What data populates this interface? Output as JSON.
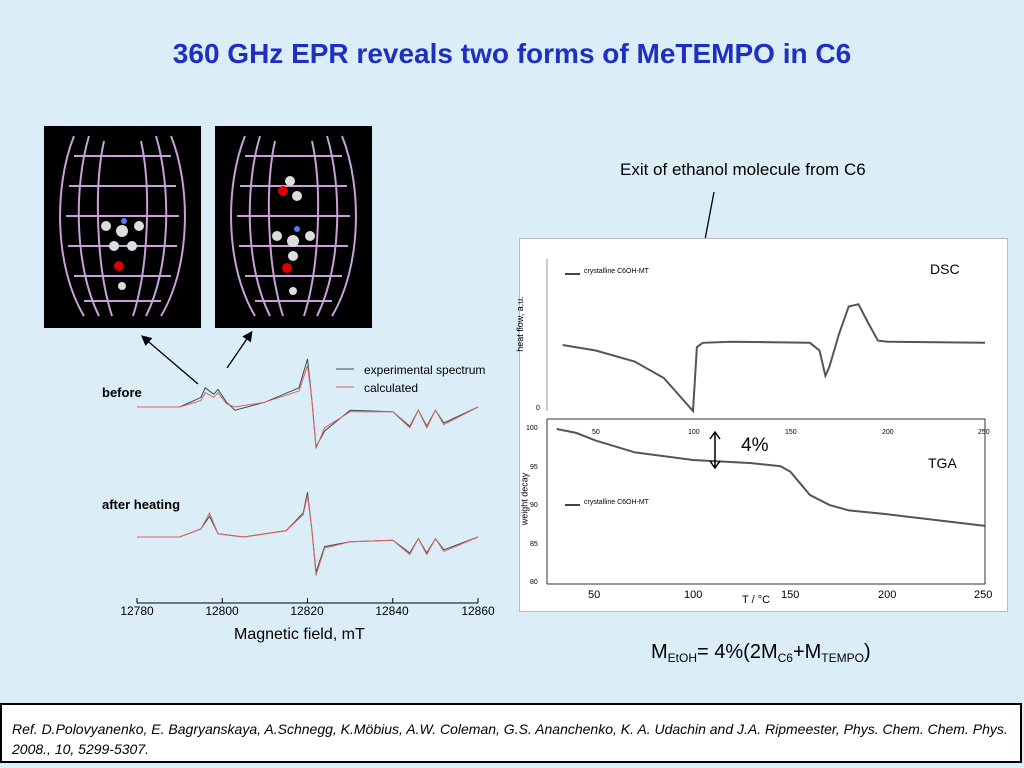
{
  "title": "360 GHz EPR reveals two forms of MeTEMPO in C6",
  "epr": {
    "legend": [
      "experimental spectrum",
      "calculated"
    ],
    "label_before": "before",
    "label_after": "after heating",
    "xlabel": "Magnetic field, mT",
    "xticks": [
      "12780",
      "12800",
      "12820",
      "12840",
      "12860"
    ]
  },
  "dsc_tga": {
    "annotation": "Exit of ethanol molecule from C6",
    "dsc_title": "DSC",
    "tga_title": "TGA",
    "dsc_legend": "crystalline C6OH-MT",
    "tga_legend": "crystalline C6OH-MT",
    "dsc_ylabel": "heat flow, a.u.",
    "tga_ylabel": "weight decay",
    "xlabel": "T / °C",
    "dsc_zero": "0",
    "dsc_xticks": [
      "50",
      "100",
      "150",
      "200",
      "250"
    ],
    "tga_yticks": [
      "100",
      "95",
      "90",
      "85",
      "80"
    ],
    "tga_xticks": [
      "50",
      "100",
      "150",
      "200",
      "250"
    ],
    "percent": "4%"
  },
  "formula": {
    "m1": "M",
    "s1": "EtOH",
    "t1": "= 4%(2M",
    "s2": "C6",
    "t2": "+M",
    "s3": "TEMPO",
    "t3": ")"
  },
  "reference": "Ref. D.Polovyanenko, E. Bagryanskaya, A.Schnegg, K.Möbius, A.W. Coleman, G.S. Ananchenko, K. A. Udachin and J.A. Ripmeester, Phys. Chem. Chem. Phys. 2008.,  10, 5299-5307.",
  "chart_data": [
    {
      "type": "line",
      "title": "",
      "xlabel": "Magnetic field, mT",
      "xlim": [
        12780,
        12860
      ],
      "series": [
        {
          "name": "experimental spectrum",
          "panel": "before",
          "x": [
            12780,
            12790,
            12795,
            12796,
            12798,
            12799,
            12801,
            12803,
            12810,
            12818,
            12820,
            12821,
            12822,
            12824,
            12830,
            12840,
            12844,
            12846,
            12848,
            12850,
            12852,
            12860
          ],
          "y": [
            0,
            0,
            0.6,
            1.2,
            0.8,
            1.1,
            0.3,
            -0.2,
            0.3,
            1.2,
            3.0,
            0.5,
            -2.5,
            -1.5,
            -0.2,
            -0.3,
            -1.2,
            -0.2,
            -1.2,
            -0.2,
            -1.0,
            0
          ]
        },
        {
          "name": "calculated",
          "panel": "before",
          "x": [
            12780,
            12790,
            12795,
            12796,
            12798,
            12799,
            12801,
            12803,
            12810,
            12818,
            12820,
            12821,
            12822,
            12824,
            12830,
            12840,
            12844,
            12846,
            12848,
            12850,
            12852,
            12860
          ],
          "y": [
            0,
            0,
            0.4,
            0.9,
            0.6,
            0.9,
            0.2,
            0,
            0.3,
            1.0,
            2.6,
            0.5,
            -2.6,
            -1.3,
            -0.3,
            -0.3,
            -1.3,
            -0.2,
            -1.3,
            -0.2,
            -1.1,
            0
          ]
        },
        {
          "name": "experimental spectrum",
          "panel": "after heating",
          "x": [
            12780,
            12790,
            12795,
            12797,
            12799,
            12805,
            12815,
            12819,
            12820,
            12821,
            12822,
            12824,
            12830,
            12840,
            12844,
            12846,
            12848,
            12850,
            12852,
            12860
          ],
          "y": [
            0,
            0,
            0.5,
            1.3,
            0.2,
            0,
            0.4,
            1.5,
            2.8,
            0.5,
            -2.2,
            -0.6,
            -0.3,
            -0.2,
            -1.0,
            -0.1,
            -1.0,
            -0.1,
            -0.8,
            0
          ]
        },
        {
          "name": "calculated",
          "panel": "after heating",
          "x": [
            12780,
            12790,
            12795,
            12797,
            12799,
            12805,
            12815,
            12819,
            12820,
            12821,
            12822,
            12824,
            12830,
            12840,
            12844,
            12846,
            12848,
            12850,
            12852,
            12860
          ],
          "y": [
            0,
            0,
            0.5,
            1.5,
            0.2,
            0,
            0.4,
            1.4,
            2.6,
            0.5,
            -2.4,
            -0.7,
            -0.3,
            -0.2,
            -1.1,
            -0.1,
            -1.1,
            -0.1,
            -0.9,
            0
          ]
        }
      ]
    },
    {
      "type": "line",
      "title": "DSC",
      "xlabel": "T / °C",
      "ylabel": "heat flow, a.u.",
      "xlim": [
        25,
        250
      ],
      "series": [
        {
          "name": "crystalline C6OH-MT",
          "x": [
            33,
            50,
            70,
            85,
            95,
            100,
            102,
            105,
            120,
            160,
            165,
            168,
            170,
            175,
            180,
            185,
            190,
            195,
            200,
            250
          ],
          "y": [
            0.6,
            0.55,
            0.45,
            0.3,
            0.1,
            0.0,
            0.58,
            0.62,
            0.63,
            0.62,
            0.55,
            0.32,
            0.4,
            0.7,
            0.95,
            0.97,
            0.8,
            0.64,
            0.63,
            0.62
          ]
        }
      ]
    },
    {
      "type": "line",
      "title": "TGA",
      "xlabel": "T / °C",
      "ylabel": "weight decay",
      "xlim": [
        25,
        250
      ],
      "ylim": [
        80,
        100
      ],
      "series": [
        {
          "name": "crystalline C6OH-MT",
          "x": [
            30,
            40,
            50,
            70,
            100,
            130,
            145,
            150,
            155,
            160,
            170,
            180,
            200,
            250
          ],
          "y": [
            100,
            99.5,
            98.5,
            97,
            96,
            95.6,
            95.2,
            94.5,
            93,
            91.5,
            90.2,
            89.5,
            89,
            87.5
          ]
        }
      ]
    }
  ]
}
